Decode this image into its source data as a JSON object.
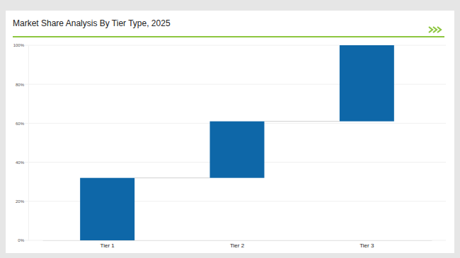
{
  "chart_data": {
    "type": "waterfall",
    "title": "Market Share Analysis By Tier Type, 2025",
    "categories": [
      "Tier 1",
      "Tier 2",
      "Tier 3"
    ],
    "values": [
      32,
      29,
      39
    ],
    "color": "#0e67a8",
    "ylim": [
      0,
      100
    ],
    "yticks": [
      {
        "value": 0,
        "label": "0%"
      },
      {
        "value": 20,
        "label": "20%"
      },
      {
        "value": 40,
        "label": "40%"
      },
      {
        "value": 60,
        "label": "60%"
      },
      {
        "value": 80,
        "label": "80%"
      },
      {
        "value": 100,
        "label": "100%"
      }
    ],
    "grid": true
  }
}
